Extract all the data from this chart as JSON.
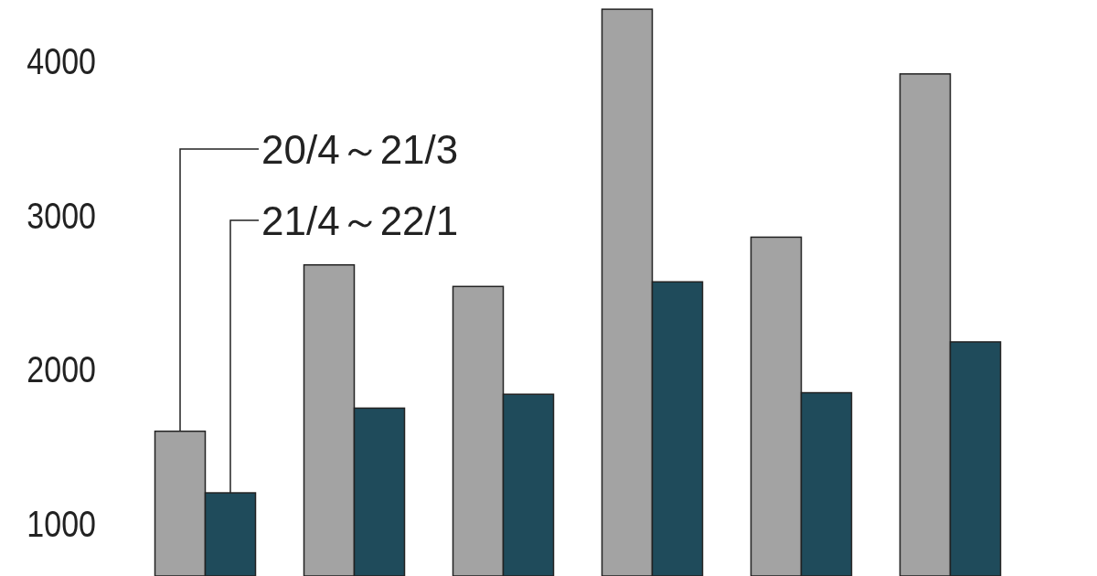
{
  "chart_data": {
    "type": "bar",
    "categories": [
      null,
      null,
      null,
      null,
      null,
      null
    ],
    "ylim": [
      660,
      4400
    ],
    "yticks": [
      1000,
      2000,
      3000,
      4000
    ],
    "tick_labels": "y",
    "series": [
      {
        "name": "20/4～21/3",
        "color": "#a3a3a3",
        "values": [
          1600,
          2680,
          2540,
          4340,
          2860,
          3920
        ]
      },
      {
        "name": "21/4～22/1",
        "color": "#1f4b5b",
        "values": [
          1200,
          1750,
          1840,
          2570,
          1850,
          2180
        ]
      }
    ]
  }
}
